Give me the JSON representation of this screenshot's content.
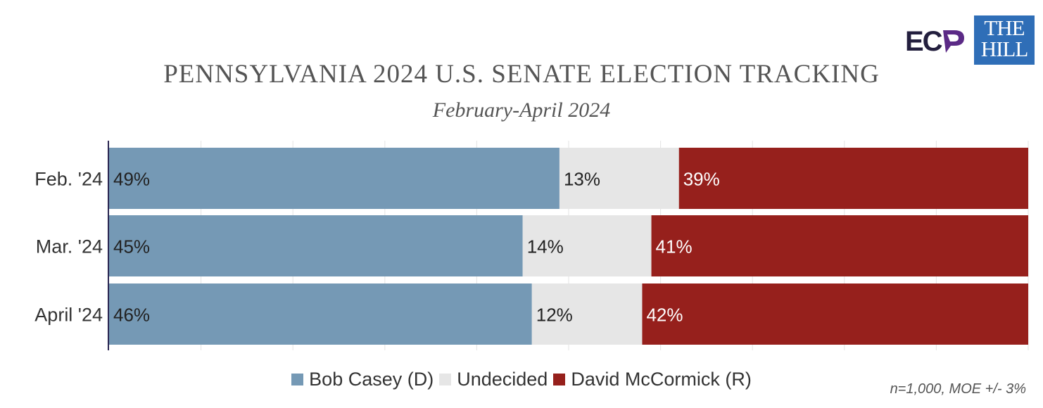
{
  "header": {
    "title": "PENNSYLVANIA 2024 U.S. SENATE ELECTION TRACKING",
    "subtitle": "February-April 2024"
  },
  "logos": {
    "ecp": "EC",
    "the_hill_line1": "THE",
    "the_hill_line2": "HILL",
    "ecp_color": "#231f3e",
    "ecp_accent": "#5b2a86",
    "hill_color": "#2f6eb7"
  },
  "footer": {
    "note": "n=1,000, MOE +/- 3%"
  },
  "chart_data": {
    "type": "bar",
    "orientation": "horizontal",
    "stacked": true,
    "title": "PENNSYLVANIA 2024 U.S. SENATE ELECTION TRACKING",
    "subtitle": "February-April 2024",
    "categories": [
      "Feb. '24",
      "Mar. '24",
      "April '24"
    ],
    "series": [
      {
        "name": "Bob Casey (D)",
        "color": "#7599b5",
        "values": [
          49,
          45,
          46
        ],
        "labels": [
          "49%",
          "45%",
          "46%"
        ]
      },
      {
        "name": "Undecided",
        "color": "#e6e6e6",
        "values": [
          13,
          14,
          12
        ],
        "labels": [
          "13%",
          "14%",
          "12%"
        ]
      },
      {
        "name": "David McCormick (R)",
        "color": "#96201c",
        "values": [
          39,
          41,
          42
        ],
        "labels": [
          "39%",
          "41%",
          "42%"
        ]
      }
    ],
    "label_colors": [
      "#222222",
      "#222222",
      "#ffffff"
    ],
    "xlim": [
      0,
      100
    ],
    "grid": true,
    "legend": "bottom"
  }
}
